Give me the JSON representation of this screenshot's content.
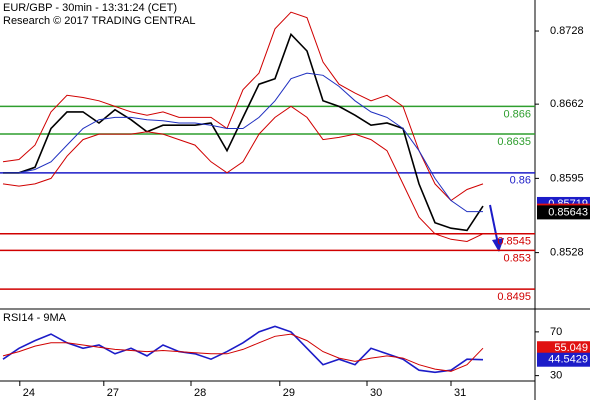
{
  "chart_data": [
    {
      "type": "line",
      "title": "EUR/GBP - 30min - 13:31:24 (CET)",
      "subtitle": "Research © 2017 TRADING CENTRAL",
      "x": [
        0,
        2,
        4,
        6,
        8,
        10,
        12,
        14,
        16,
        18,
        20,
        22,
        24,
        26,
        28,
        30,
        32,
        34,
        36,
        38,
        40,
        42,
        44,
        46,
        48,
        50,
        52,
        54,
        56,
        58,
        60
      ],
      "xlim": [
        0,
        62
      ],
      "ylim": [
        0.8478,
        0.8756
      ],
      "yticks": [
        0.8728,
        0.8662,
        0.8595,
        0.8528
      ],
      "series": [
        {
          "name": "Price",
          "color": "#000000",
          "values": [
            0.86,
            0.86,
            0.8605,
            0.864,
            0.8655,
            0.8655,
            0.8645,
            0.8657,
            0.8648,
            0.8637,
            0.8643,
            0.8643,
            0.8643,
            0.8645,
            0.862,
            0.865,
            0.868,
            0.8685,
            0.8725,
            0.871,
            0.8665,
            0.866,
            0.8652,
            0.8643,
            0.8645,
            0.864,
            0.859,
            0.8555,
            0.855,
            0.8548,
            0.857
          ]
        },
        {
          "name": "Upper band",
          "color": "#d00000",
          "values": [
            0.861,
            0.8612,
            0.8625,
            0.8655,
            0.867,
            0.8668,
            0.8665,
            0.866,
            0.8655,
            0.8652,
            0.8655,
            0.865,
            0.865,
            0.865,
            0.864,
            0.8675,
            0.869,
            0.873,
            0.8745,
            0.874,
            0.87,
            0.868,
            0.8672,
            0.8665,
            0.867,
            0.866,
            0.862,
            0.859,
            0.8575,
            0.8585,
            0.859
          ]
        },
        {
          "name": "Lower band",
          "color": "#d00000",
          "values": [
            0.859,
            0.8588,
            0.859,
            0.8595,
            0.8615,
            0.863,
            0.8635,
            0.8635,
            0.8635,
            0.8637,
            0.8635,
            0.863,
            0.8625,
            0.861,
            0.86,
            0.861,
            0.8635,
            0.865,
            0.866,
            0.865,
            0.863,
            0.8632,
            0.8635,
            0.863,
            0.862,
            0.859,
            0.856,
            0.8545,
            0.854,
            0.8538,
            0.8545
          ]
        },
        {
          "name": "Moving average",
          "color": "#2030c0",
          "values": [
            0.86,
            0.86,
            0.8603,
            0.861,
            0.8625,
            0.864,
            0.8648,
            0.865,
            0.865,
            0.8648,
            0.8647,
            0.8645,
            0.8645,
            0.8643,
            0.864,
            0.864,
            0.865,
            0.8665,
            0.8685,
            0.869,
            0.8688,
            0.8678,
            0.8665,
            0.8655,
            0.865,
            0.864,
            0.862,
            0.8595,
            0.8575,
            0.8565,
            0.8565
          ]
        }
      ],
      "levels": [
        {
          "value": 0.866,
          "color": "#2e9e2e"
        },
        {
          "value": 0.8635,
          "color": "#2e9e2e"
        },
        {
          "value": 0.86,
          "color": "#1c1cc8"
        },
        {
          "value": 0.8545,
          "color": "#d00000"
        },
        {
          "value": 0.853,
          "color": "#d00000"
        },
        {
          "value": 0.8495,
          "color": "#d00000"
        }
      ],
      "price_labels": [
        {
          "value": 0.85719,
          "color": "#1c1cc8"
        },
        {
          "value": 0.85659,
          "color": "#e01010"
        },
        {
          "value": 0.85643,
          "color": "#000000"
        }
      ]
    },
    {
      "type": "line",
      "title": "RSI14 - 9MA",
      "x": [
        0,
        2,
        4,
        6,
        8,
        10,
        12,
        14,
        16,
        18,
        20,
        22,
        24,
        26,
        28,
        30,
        32,
        34,
        36,
        38,
        40,
        42,
        44,
        46,
        48,
        50,
        52,
        54,
        56,
        58,
        60
      ],
      "xlim": [
        0,
        62
      ],
      "xticks": [
        {
          "value": 2.1,
          "label": "24"
        },
        {
          "value": 12.6,
          "label": "27"
        },
        {
          "value": 23.5,
          "label": "28"
        },
        {
          "value": 34.6,
          "label": "29"
        },
        {
          "value": 45.5,
          "label": "30"
        },
        {
          "value": 56,
          "label": "31"
        }
      ],
      "ylim": [
        26,
        90
      ],
      "yticks": [
        70,
        30
      ],
      "series": [
        {
          "name": "RSI",
          "color": "#1c1cc8",
          "values": [
            45,
            55,
            62,
            68,
            60,
            55,
            58,
            50,
            55,
            48,
            58,
            52,
            50,
            45,
            52,
            60,
            70,
            75,
            70,
            55,
            40,
            45,
            40,
            55,
            50,
            45,
            35,
            33,
            35,
            45,
            44.5429
          ]
        },
        {
          "name": "MA",
          "color": "#d00000",
          "values": [
            48,
            52,
            57,
            60,
            60,
            58,
            56,
            54,
            53,
            52,
            53,
            52,
            51,
            50,
            50,
            54,
            60,
            66,
            68,
            62,
            52,
            46,
            43,
            46,
            48,
            46,
            40,
            36,
            34,
            40,
            55.049
          ]
        }
      ],
      "value_boxes": [
        {
          "value": 55.049,
          "color": "#e01010"
        },
        {
          "value": 44.5429,
          "color": "#1c1cc8"
        }
      ]
    }
  ]
}
